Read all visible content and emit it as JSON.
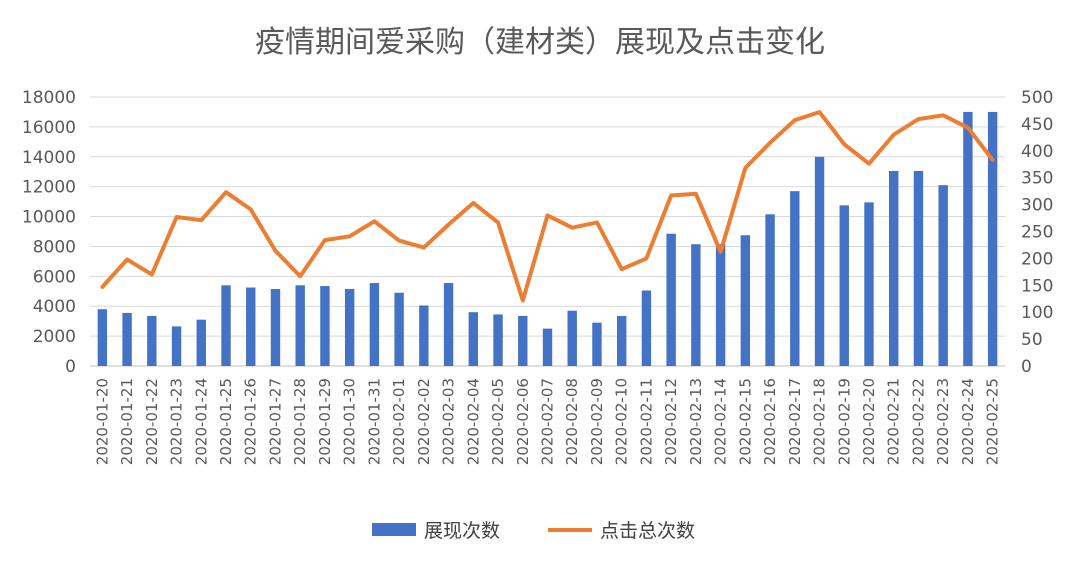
{
  "chart_data": {
    "type": "bar+line",
    "title": "疫情期间爱采购（建材类）展现及点击变化",
    "categories": [
      "2020-01-20",
      "2020-01-21",
      "2020-01-22",
      "2020-01-23",
      "2020-01-24",
      "2020-01-25",
      "2020-01-26",
      "2020-01-27",
      "2020-01-28",
      "2020-01-29",
      "2020-01-30",
      "2020-01-31",
      "2020-02-01",
      "2020-02-02",
      "2020-02-03",
      "2020-02-04",
      "2020-02-05",
      "2020-02-06",
      "2020-02-07",
      "2020-02-08",
      "2020-02-09",
      "2020-02-10",
      "2020-02-11",
      "2020-02-12",
      "2020-02-13",
      "2020-02-14",
      "2020-02-15",
      "2020-02-16",
      "2020-02-17",
      "2020-02-18",
      "2020-02-19",
      "2020-02-20",
      "2020-02-21",
      "2020-02-22",
      "2020-02-23",
      "2020-02-24",
      "2020-02-25"
    ],
    "series": [
      {
        "name": "展现次数",
        "type": "bar",
        "axis": "left",
        "color": "#4472C4",
        "values": [
          3800,
          3550,
          3350,
          2650,
          3100,
          5400,
          5250,
          5150,
          5400,
          5350,
          5150,
          5550,
          4900,
          4050,
          5550,
          3600,
          3450,
          3350,
          2500,
          3700,
          2900,
          3350,
          5050,
          8850,
          8150,
          8150,
          8750,
          10150,
          11700,
          14000,
          10750,
          10950,
          13050,
          13050,
          12100,
          17000,
          17000
        ]
      },
      {
        "name": "点击总次数",
        "type": "line",
        "axis": "right",
        "color": "#ED7D31",
        "values": [
          147,
          198,
          170,
          277,
          271,
          323,
          291,
          214,
          167,
          234,
          241,
          269,
          233,
          220,
          263,
          303,
          267,
          122,
          280,
          257,
          267,
          180,
          200,
          317,
          320,
          212,
          368,
          415,
          457,
          472,
          412,
          376,
          430,
          459,
          466,
          443,
          383
        ]
      }
    ],
    "yleft": {
      "min": 0,
      "max": 18000,
      "ticks": [
        "0",
        "2000",
        "4000",
        "6000",
        "8000",
        "10000",
        "12000",
        "14000",
        "16000",
        "18000"
      ]
    },
    "yright": {
      "min": 0,
      "max": 500,
      "ticks": [
        "0",
        "50",
        "100",
        "150",
        "200",
        "250",
        "300",
        "350",
        "400",
        "450",
        "500"
      ]
    },
    "grid": true,
    "legend_position": "bottom"
  }
}
